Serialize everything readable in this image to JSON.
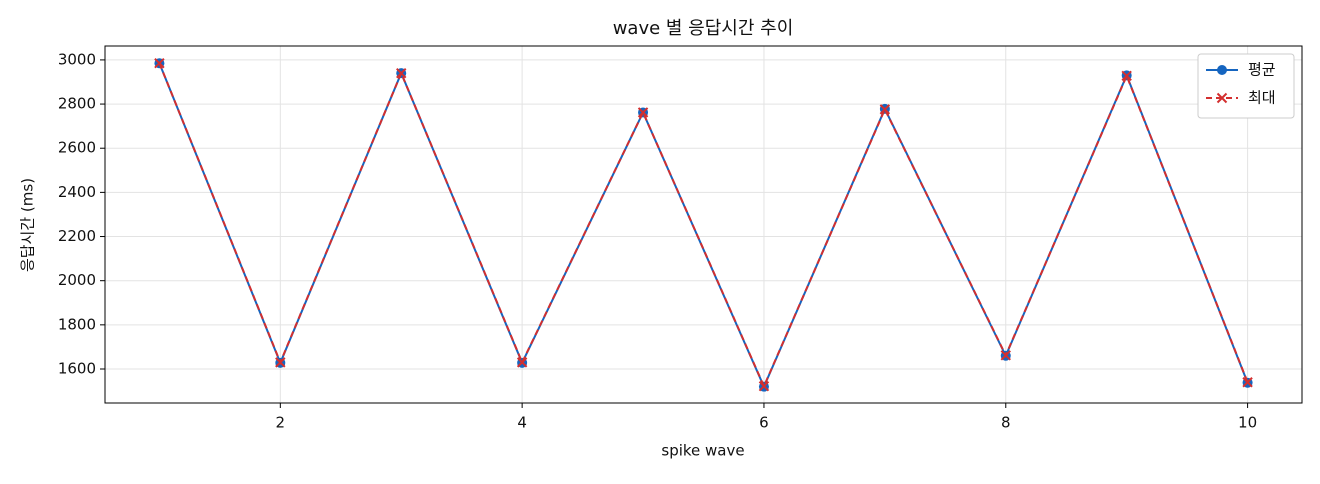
{
  "chart_data": {
    "type": "line",
    "title": "wave 별 응답시간 추이",
    "x_label": "spike wave",
    "y_label": "응답시간 (ms)",
    "x": [
      1,
      2,
      3,
      4,
      5,
      6,
      7,
      8,
      9,
      10
    ],
    "series": [
      {
        "name": "평균",
        "color": "#1565c0",
        "marker": "circle",
        "dash": false,
        "values": [
          2985,
          1628,
          2940,
          1628,
          2762,
          1520,
          2778,
          1660,
          2930,
          1538
        ]
      },
      {
        "name": "최대",
        "color": "#d32f2f",
        "marker": "x",
        "dash": true,
        "values": [
          2985,
          1630,
          2940,
          1630,
          2762,
          1522,
          2776,
          1662,
          2928,
          1540
        ]
      }
    ],
    "xlim": [
      0.55,
      10.45
    ],
    "xticks": [
      2,
      4,
      6,
      8,
      10
    ],
    "ylim": [
      1446,
      3063
    ],
    "yticks": [
      1600,
      1800,
      2000,
      2200,
      2400,
      2600,
      2800,
      3000
    ],
    "grid": true,
    "legend": "upper right"
  }
}
